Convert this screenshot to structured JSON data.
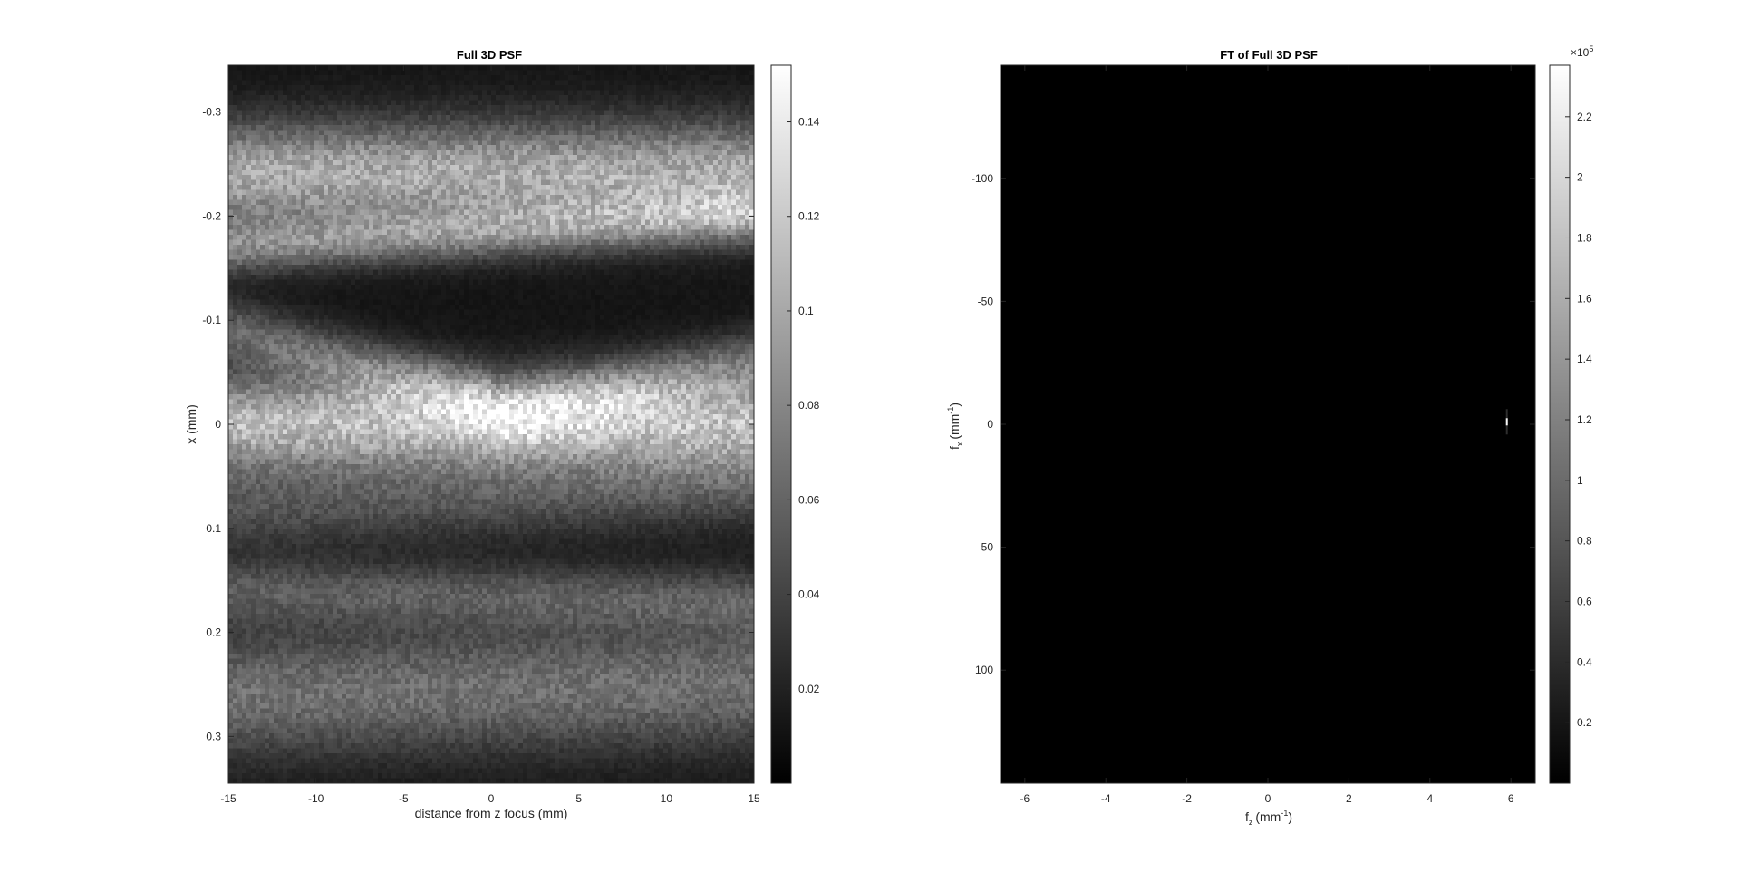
{
  "chart_data": [
    {
      "type": "heatmap",
      "title": "Full 3D PSF",
      "xlabel": "distance from z focus (mm)",
      "ylabel": "x (mm)",
      "xlim": [
        -15,
        15
      ],
      "ylim": [
        -0.345,
        0.345
      ],
      "y_direction": "reversed",
      "colormap": "gray",
      "xticks": [
        -15,
        -10,
        -5,
        0,
        5,
        10,
        15
      ],
      "xtick_labels": [
        "-15",
        "-10",
        "-5",
        "0",
        "5",
        "10",
        "15"
      ],
      "yticks": [
        -0.3,
        -0.2,
        -0.1,
        0,
        0.1,
        0.2,
        0.3
      ],
      "ytick_labels": [
        "-0.3",
        "-0.2",
        "-0.1",
        "0",
        "0.1",
        "0.2",
        "0.3"
      ],
      "colorbar": {
        "limits": [
          0,
          0.152
        ],
        "ticks": [
          0.02,
          0.04,
          0.06,
          0.08,
          0.1,
          0.12,
          0.14
        ],
        "tick_labels": [
          "0.02",
          "0.04",
          "0.06",
          "0.08",
          "0.1",
          "0.12",
          "0.14"
        ]
      },
      "bands": [
        {
          "z_start": -15,
          "z_end": 15,
          "x_center": -0.24,
          "x_center_end": -0.24,
          "width": 0.05,
          "intensity": 0.09
        },
        {
          "z_start": -15,
          "z_end": 15,
          "x_center": -0.17,
          "x_center_end": -0.2,
          "width": 0.025,
          "intensity": 0.06
        },
        {
          "z_start": -15,
          "z_end": 15,
          "x_center": 0.0,
          "x_center_end": 0.0,
          "width": 0.045,
          "intensity": 0.1
        },
        {
          "z_start": -15,
          "z_end": 0,
          "x_center": -0.09,
          "x_center_end": -0.02,
          "width": 0.03,
          "intensity": 0.05
        },
        {
          "z_start": 0,
          "z_end": 15,
          "x_center": -0.01,
          "x_center_end": -0.06,
          "width": 0.03,
          "intensity": 0.045
        },
        {
          "z_start": -15,
          "z_end": 15,
          "x_center": 0.08,
          "x_center_end": 0.06,
          "width": 0.04,
          "intensity": 0.035
        },
        {
          "z_start": -15,
          "z_end": 15,
          "x_center": 0.16,
          "x_center_end": 0.17,
          "width": 0.03,
          "intensity": 0.04
        },
        {
          "z_start": -15,
          "z_end": 15,
          "x_center": 0.26,
          "x_center_end": 0.25,
          "width": 0.06,
          "intensity": 0.055
        }
      ]
    },
    {
      "type": "heatmap",
      "title": "FT of Full 3D PSF",
      "xlabel": "f",
      "xlabel_sub": "z",
      "xlabel_unit": "(mm",
      "xlabel_unit_sup": "-1",
      "xlabel_close": ")",
      "ylabel": "f",
      "ylabel_sub": "x",
      "ylabel_unit": "(mm",
      "ylabel_unit_sup": "-1",
      "ylabel_close": ")",
      "xlim": [
        -6.6,
        6.6
      ],
      "ylim": [
        -146,
        146
      ],
      "y_direction": "reversed",
      "colormap": "gray",
      "xticks": [
        -6,
        -4,
        -2,
        0,
        2,
        4,
        6
      ],
      "xtick_labels": [
        "-6",
        "-4",
        "-2",
        "0",
        "2",
        "4",
        "6"
      ],
      "yticks": [
        -100,
        -50,
        0,
        50,
        100
      ],
      "ytick_labels": [
        "-100",
        "-50",
        "0",
        "50",
        "100"
      ],
      "colorbar": {
        "limits": [
          0,
          2.37
        ],
        "ticks": [
          0.2,
          0.4,
          0.6,
          0.8,
          1,
          1.2,
          1.4,
          1.6,
          1.8,
          2,
          2.2
        ],
        "tick_labels": [
          "0.2",
          "0.4",
          "0.6",
          "0.8",
          "1",
          "1.2",
          "1.4",
          "1.6",
          "1.8",
          "2",
          "2.2"
        ],
        "multiplier_base": "×10",
        "multiplier_exp": "5"
      },
      "peaks": [
        {
          "fz": 5.9,
          "fx": -1,
          "intensity": 2.3
        }
      ]
    }
  ]
}
